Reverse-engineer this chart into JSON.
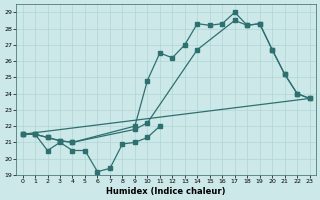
{
  "xlabel": "Humidex (Indice chaleur)",
  "xlim": [
    -0.5,
    23.5
  ],
  "ylim": [
    19,
    29.5
  ],
  "yticks": [
    19,
    20,
    21,
    22,
    23,
    24,
    25,
    26,
    27,
    28,
    29
  ],
  "xticks": [
    0,
    1,
    2,
    3,
    4,
    5,
    6,
    7,
    8,
    9,
    10,
    11,
    12,
    13,
    14,
    15,
    16,
    17,
    18,
    19,
    20,
    21,
    22,
    23
  ],
  "background_color": "#cde8e8",
  "grid_color": "#b0d4d4",
  "line_color": "#2e7070",
  "line1_x": [
    0,
    1,
    2,
    3,
    4,
    5,
    6,
    7,
    8,
    9,
    10,
    11
  ],
  "line1_y": [
    21.5,
    21.5,
    20.5,
    21.0,
    20.5,
    20.5,
    19.2,
    19.4,
    20.9,
    21.0,
    21.3,
    22.0
  ],
  "line2_x": [
    0,
    1,
    2,
    3,
    4,
    9,
    10,
    11,
    12,
    13,
    14,
    15,
    16,
    17,
    18,
    19,
    20,
    21,
    22,
    23
  ],
  "line2_y": [
    21.5,
    21.5,
    21.3,
    21.1,
    21.0,
    22.0,
    24.8,
    26.5,
    26.2,
    27.0,
    28.3,
    28.2,
    28.3,
    29.0,
    28.2,
    28.3,
    26.7,
    25.2,
    24.0,
    23.7
  ],
  "line3_x": [
    0,
    1,
    2,
    3,
    4,
    9,
    10,
    14,
    17,
    18,
    19,
    20,
    21,
    22,
    23
  ],
  "line3_y": [
    21.5,
    21.5,
    21.3,
    21.1,
    21.0,
    21.8,
    22.2,
    26.7,
    28.5,
    28.2,
    28.3,
    26.7,
    25.2,
    24.0,
    23.7
  ],
  "line4_x": [
    0,
    23
  ],
  "line4_y": [
    21.5,
    23.7
  ]
}
